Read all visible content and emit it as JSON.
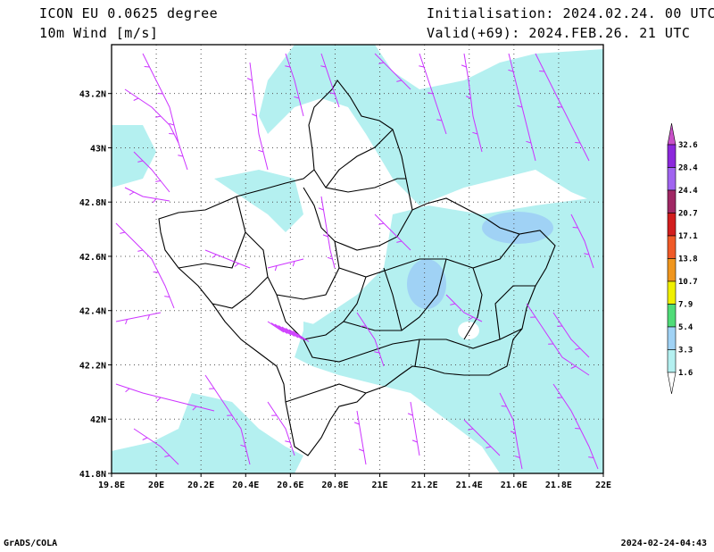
{
  "header": {
    "model_title": "ICON EU 0.0625 degree",
    "variable": "10m Wind [m/s]",
    "init": "Initialisation: 2024.02.24. 00 UTC",
    "valid": "Valid(+69): 2024.FEB.26. 21 UTC"
  },
  "footer": {
    "left": "GrADS/COLA",
    "right": "2024-02-24-04:43"
  },
  "map": {
    "lon_labels": [
      "19.8E",
      "20E",
      "20.2E",
      "20.4E",
      "20.6E",
      "20.8E",
      "21E",
      "21.2E",
      "21.4E",
      "21.6E",
      "21.8E",
      "22E"
    ],
    "lon_values": [
      19.8,
      20.0,
      20.2,
      20.4,
      20.6,
      20.8,
      21.0,
      21.2,
      21.4,
      21.6,
      21.8,
      22.0
    ],
    "lat_labels": [
      "43.2N",
      "43N",
      "42.8N",
      "42.6N",
      "42.4N",
      "42.2N",
      "42N",
      "41.8N"
    ],
    "lat_values": [
      43.2,
      43.0,
      42.8,
      42.6,
      42.4,
      42.2,
      42.0,
      41.8
    ],
    "lon_range": [
      19.8,
      22.0
    ],
    "lat_range": [
      41.8,
      43.38
    ],
    "wind_barb_color": "#cc33ff",
    "shading_color_low": "#b4f0f0",
    "shading_color_mid": "#a0d2f5"
  },
  "colorbar": {
    "labels": [
      "32.6",
      "28.4",
      "24.4",
      "20.7",
      "17.1",
      "13.8",
      "10.7",
      "7.9",
      "5.4",
      "3.3",
      "1.6"
    ],
    "colors": [
      "#8c28dc",
      "#a064f0",
      "#a02864",
      "#d21e1e",
      "#f05a28",
      "#f0961e",
      "#f0f000",
      "#50dc78",
      "#a0d2f5",
      "#b4f0f0"
    ],
    "top_color": "#c850c8"
  }
}
